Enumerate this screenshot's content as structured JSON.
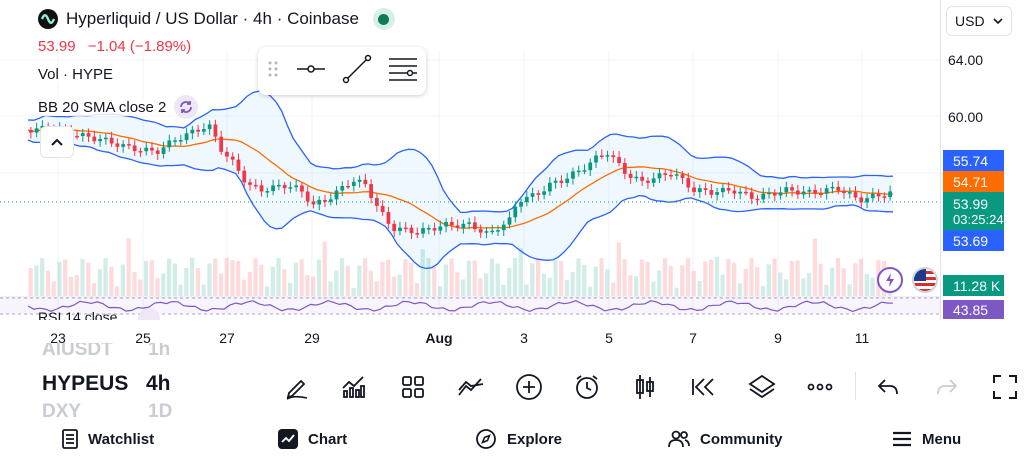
{
  "header": {
    "title": "Hyperliquid / US Dollar · 4h · Coinbase",
    "price": "53.99",
    "change": "−1.04 (−1.89%)",
    "currency": "USD"
  },
  "indicators": {
    "volume": "Vol · HYPE",
    "bollinger": "BB 20 SMA close 2",
    "rsi": "RSI 14 close"
  },
  "price_axis": {
    "ticks": [
      "64.00",
      "60.00"
    ],
    "bb_upper": "55.74",
    "bb_basis": "54.71",
    "last_price": "53.99",
    "countdown": "03:25:24",
    "bb_lower": "53.69",
    "volume": "11.28 K",
    "rsi": "43.85"
  },
  "time_axis": [
    "23",
    "25",
    "27",
    "29",
    "Aug",
    "3",
    "5",
    "7",
    "9",
    "11"
  ],
  "symbol_picker": {
    "above": "AIUSDT",
    "above_interval": "1h",
    "symbol": "HYPEUS",
    "interval": "4h",
    "below": "DXY",
    "below_interval": "1D"
  },
  "toolbar": [
    "draw-icon",
    "indicators-icon",
    "layouts-icon",
    "compare-icon",
    "add-icon",
    "alert-icon",
    "chart-type-icon",
    "replay-icon",
    "layers-icon",
    "more-icon",
    "undo-icon",
    "redo-icon",
    "fullscreen-icon"
  ],
  "nav": {
    "watchlist": "Watchlist",
    "chart": "Chart",
    "explore": "Explore",
    "community": "Community",
    "menu": "Menu"
  },
  "colors": {
    "up": "#089981",
    "down": "#f23645",
    "bb_band": "#2962ff",
    "bb_basis": "#ff6d00",
    "rsi": "#7e57c2"
  }
}
